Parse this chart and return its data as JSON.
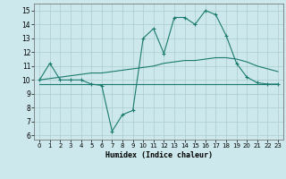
{
  "xlabel": "Humidex (Indice chaleur)",
  "bg_color": "#cce8ec",
  "grid_color": "#aacccc",
  "line_color": "#1a7a6e",
  "x_ticks": [
    0,
    1,
    2,
    3,
    4,
    5,
    6,
    7,
    8,
    9,
    10,
    11,
    12,
    13,
    14,
    15,
    16,
    17,
    18,
    19,
    20,
    21,
    22,
    23
  ],
  "y_ticks": [
    6,
    7,
    8,
    9,
    10,
    11,
    12,
    13,
    14,
    15
  ],
  "ylim": [
    5.7,
    15.5
  ],
  "xlim": [
    -0.5,
    23.5
  ],
  "line1_x": [
    0,
    1,
    2,
    3,
    4,
    5,
    6,
    7,
    8,
    9,
    10,
    11,
    12,
    13,
    14,
    15,
    16,
    17,
    18,
    19,
    20,
    21,
    22,
    23
  ],
  "line1_y": [
    10.0,
    11.2,
    10.0,
    10.0,
    10.0,
    9.7,
    9.6,
    6.3,
    7.5,
    7.8,
    13.0,
    13.7,
    11.9,
    14.5,
    14.5,
    14.0,
    15.0,
    14.7,
    13.2,
    11.2,
    10.2,
    9.8,
    9.7,
    9.7
  ],
  "line2_x": [
    0,
    1,
    2,
    3,
    4,
    5,
    6,
    7,
    8,
    9,
    10,
    11,
    12,
    13,
    14,
    15,
    16,
    17,
    18,
    19,
    20,
    21,
    22,
    23
  ],
  "line2_y": [
    10.0,
    10.1,
    10.2,
    10.3,
    10.4,
    10.5,
    10.5,
    10.6,
    10.7,
    10.8,
    10.9,
    11.0,
    11.2,
    11.3,
    11.4,
    11.4,
    11.5,
    11.6,
    11.6,
    11.5,
    11.3,
    11.0,
    10.8,
    10.6
  ],
  "line3_x": [
    0,
    1,
    2,
    3,
    4,
    5,
    6,
    7,
    8,
    9,
    10,
    11,
    12,
    13,
    14,
    15,
    16,
    17,
    18,
    19,
    20,
    21,
    22,
    23
  ],
  "line3_y": [
    9.7,
    9.7,
    9.7,
    9.7,
    9.7,
    9.7,
    9.7,
    9.7,
    9.7,
    9.7,
    9.7,
    9.7,
    9.7,
    9.7,
    9.7,
    9.7,
    9.7,
    9.7,
    9.7,
    9.7,
    9.7,
    9.7,
    9.7,
    9.7
  ]
}
